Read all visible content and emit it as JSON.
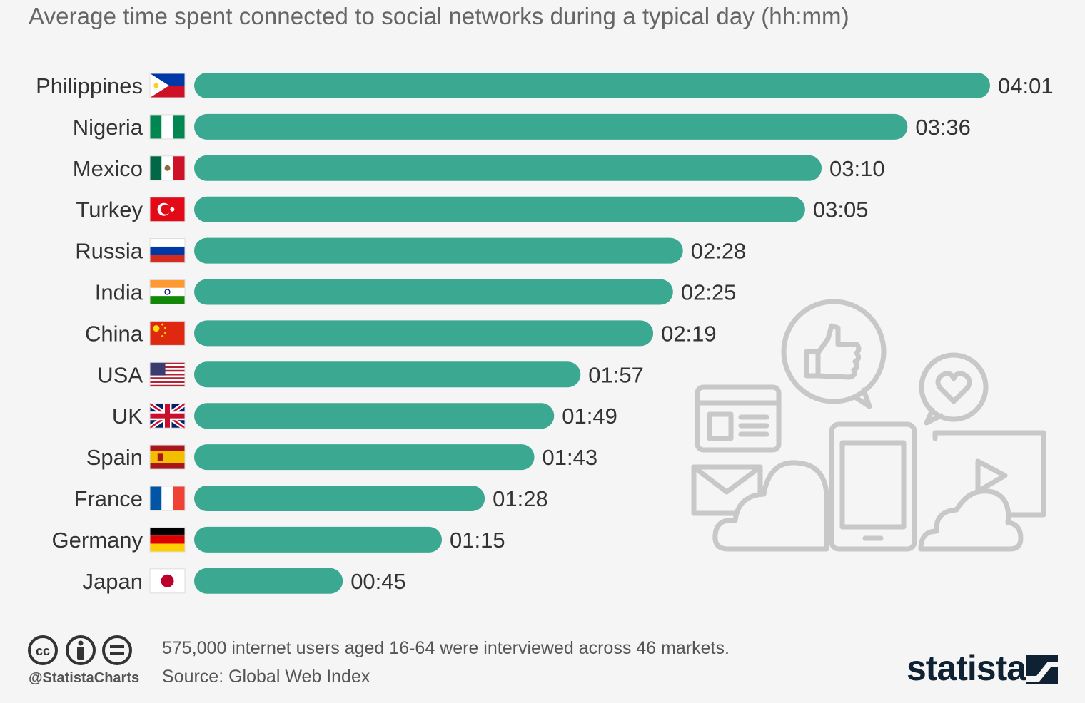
{
  "chart_data": {
    "type": "bar",
    "orientation": "horizontal",
    "title": "Average time spent connected to social networks during a typical day (hh:mm)",
    "categories": [
      "Philippines",
      "Nigeria",
      "Mexico",
      "Turkey",
      "Russia",
      "India",
      "China",
      "USA",
      "UK",
      "Spain",
      "France",
      "Germany",
      "Japan"
    ],
    "value_labels": [
      "04:01",
      "03:36",
      "03:10",
      "03:05",
      "02:28",
      "02:25",
      "02:19",
      "01:57",
      "01:49",
      "01:43",
      "01:28",
      "01:15",
      "00:45"
    ],
    "values_minutes": [
      241,
      216,
      190,
      185,
      148,
      145,
      139,
      117,
      109,
      103,
      88,
      75,
      45
    ],
    "bar_color": "#3ba892",
    "grid": false,
    "legend": "none",
    "flag_icons": [
      "philippines-flag-icon",
      "nigeria-flag-icon",
      "mexico-flag-icon",
      "turkey-flag-icon",
      "russia-flag-icon",
      "india-flag-icon",
      "china-flag-icon",
      "usa-flag-icon",
      "uk-flag-icon",
      "spain-flag-icon",
      "france-flag-icon",
      "germany-flag-icon",
      "japan-flag-icon"
    ]
  },
  "footer": {
    "note": "575,000 internet users aged 16-64 were interviewed across 46 markets.",
    "source": "Source: Global Web Index",
    "handle": "@StatistaCharts",
    "brand": "statista",
    "icons": [
      "cc-icon",
      "attribution-icon",
      "noderivs-icon"
    ]
  },
  "illustration_icons": [
    "thumbs-up-icon",
    "heart-bubble-icon",
    "browser-window-icon",
    "envelope-icon",
    "cloud-icon",
    "tablet-icon",
    "video-play-icon"
  ]
}
